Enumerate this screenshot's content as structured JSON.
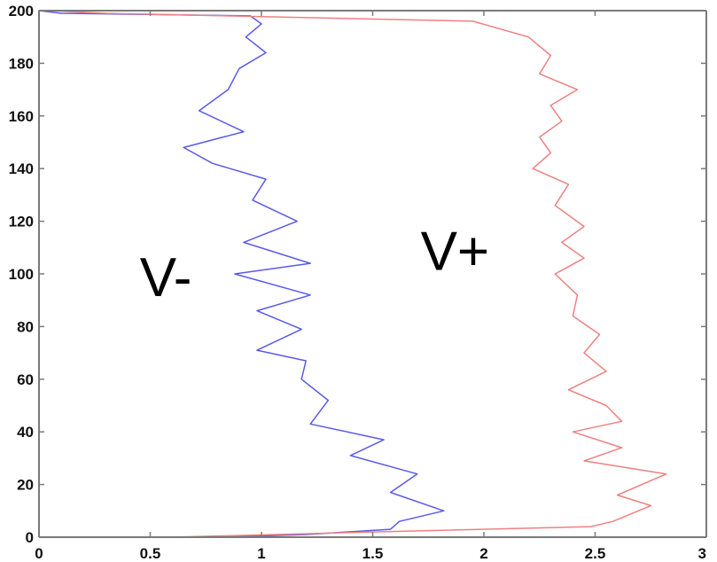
{
  "chart_data": {
    "type": "line",
    "title": "",
    "xlabel": "",
    "ylabel": "",
    "xlim": [
      0,
      3
    ],
    "ylim": [
      0,
      200
    ],
    "x_ticks": [
      0,
      0.5,
      1,
      1.5,
      2,
      2.5,
      3
    ],
    "x_tick_labels": [
      "0",
      "0.5",
      "1",
      "1.5",
      "2",
      "2.5",
      "3"
    ],
    "y_ticks": [
      0,
      20,
      40,
      60,
      80,
      100,
      120,
      140,
      160,
      180,
      200
    ],
    "y_tick_labels": [
      "0",
      "20",
      "40",
      "60",
      "80",
      "100",
      "120",
      "140",
      "160",
      "180",
      "200"
    ],
    "grid": false,
    "series": [
      {
        "color": "#5a5ae8",
        "points": [
          [
            0.8,
            0
          ],
          [
            1.2,
            1
          ],
          [
            1.58,
            3
          ],
          [
            1.62,
            6
          ],
          [
            1.82,
            10
          ],
          [
            1.58,
            17
          ],
          [
            1.7,
            24
          ],
          [
            1.4,
            31
          ],
          [
            1.55,
            37
          ],
          [
            1.22,
            43
          ],
          [
            1.3,
            52
          ],
          [
            1.18,
            60
          ],
          [
            1.2,
            67
          ],
          [
            0.98,
            71
          ],
          [
            1.18,
            79
          ],
          [
            0.98,
            86
          ],
          [
            1.22,
            92
          ],
          [
            0.88,
            100
          ],
          [
            1.22,
            104
          ],
          [
            0.92,
            112
          ],
          [
            1.16,
            120
          ],
          [
            0.96,
            128
          ],
          [
            1.02,
            136
          ],
          [
            0.78,
            142
          ],
          [
            0.65,
            148
          ],
          [
            0.92,
            154
          ],
          [
            0.72,
            162
          ],
          [
            0.85,
            170
          ],
          [
            0.9,
            178
          ],
          [
            1.02,
            184
          ],
          [
            0.93,
            190
          ],
          [
            1.0,
            195
          ],
          [
            0.95,
            198
          ],
          [
            0.1,
            199
          ],
          [
            0,
            200
          ]
        ]
      },
      {
        "color": "#f08080",
        "points": [
          [
            0.6,
            0
          ],
          [
            1.5,
            2
          ],
          [
            2.48,
            4
          ],
          [
            2.58,
            6
          ],
          [
            2.75,
            12
          ],
          [
            2.6,
            16
          ],
          [
            2.82,
            24
          ],
          [
            2.45,
            29
          ],
          [
            2.62,
            34
          ],
          [
            2.4,
            40
          ],
          [
            2.62,
            44
          ],
          [
            2.55,
            50
          ],
          [
            2.38,
            56
          ],
          [
            2.55,
            63
          ],
          [
            2.45,
            70
          ],
          [
            2.52,
            77
          ],
          [
            2.4,
            84
          ],
          [
            2.42,
            92
          ],
          [
            2.32,
            100
          ],
          [
            2.45,
            106
          ],
          [
            2.35,
            112
          ],
          [
            2.45,
            118
          ],
          [
            2.32,
            126
          ],
          [
            2.38,
            134
          ],
          [
            2.22,
            140
          ],
          [
            2.3,
            146
          ],
          [
            2.25,
            152
          ],
          [
            2.35,
            158
          ],
          [
            2.3,
            164
          ],
          [
            2.42,
            170
          ],
          [
            2.25,
            176
          ],
          [
            2.3,
            183
          ],
          [
            2.2,
            190
          ],
          [
            1.95,
            196
          ],
          [
            0.3,
            199
          ],
          [
            0.05,
            200
          ]
        ]
      }
    ],
    "annotations": [
      {
        "text": "V-",
        "x": 0.57,
        "y": 99
      },
      {
        "text": "V+",
        "x": 1.87,
        "y": 109
      }
    ]
  }
}
